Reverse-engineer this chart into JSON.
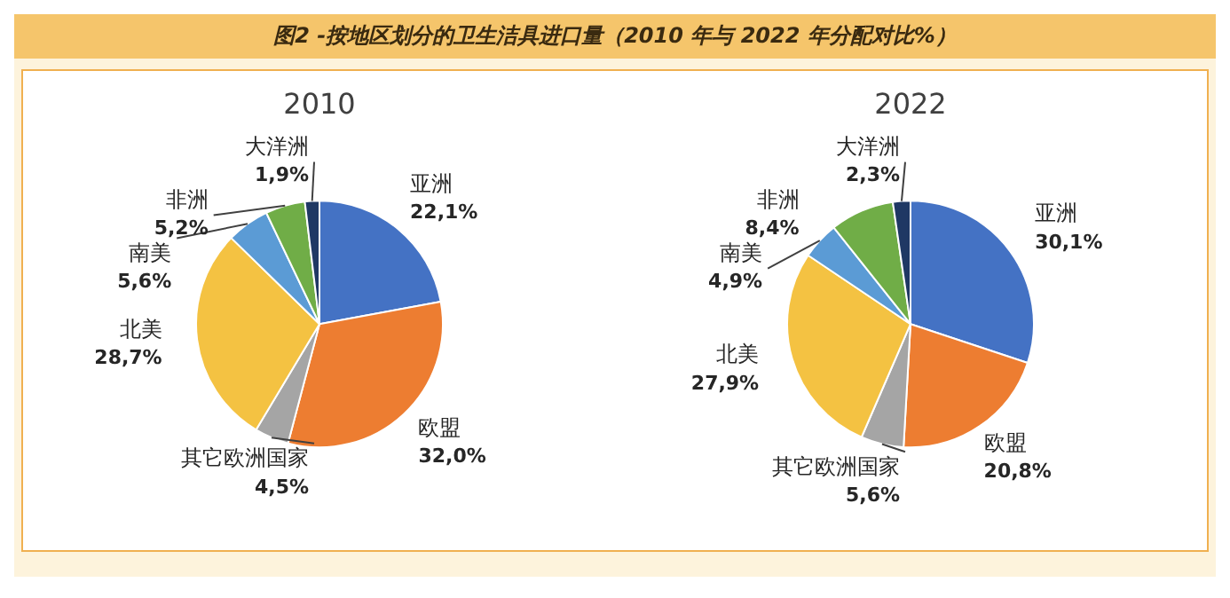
{
  "chart_data": [
    {
      "type": "pie",
      "title": "2010",
      "annotations": [
        "图2 -按地区划分的卫生洁具进口量（2010 年与 2022 年分配对比%）"
      ],
      "categories": [
        "亚洲",
        "欧盟",
        "其它欧洲国家",
        "北美",
        "南美",
        "非洲",
        "大洋洲"
      ],
      "values": [
        22.1,
        32.0,
        4.5,
        28.7,
        5.6,
        5.2,
        1.9
      ],
      "value_labels": [
        "22,1%",
        "32,0%",
        "4,5%",
        "28,7%",
        "5,6%",
        "5,2%",
        "1,9%"
      ],
      "colors": [
        "#4472c4",
        "#ed7d31",
        "#a5a5a5",
        "#f4c242",
        "#5b9bd5",
        "#70ad47",
        "#1f3864"
      ],
      "legend": false
    },
    {
      "type": "pie",
      "title": "2022",
      "categories": [
        "亚洲",
        "欧盟",
        "其它欧洲国家",
        "北美",
        "南美",
        "非洲",
        "大洋洲"
      ],
      "values": [
        30.1,
        20.8,
        5.6,
        27.9,
        4.9,
        8.4,
        2.3
      ],
      "value_labels": [
        "30,1%",
        "20,8%",
        "5,6%",
        "27,9%",
        "4,9%",
        "8,4%",
        "2,3%"
      ],
      "colors": [
        "#4472c4",
        "#ed7d31",
        "#a5a5a5",
        "#f4c242",
        "#5b9bd5",
        "#70ad47",
        "#1f3864"
      ],
      "legend": false
    }
  ]
}
